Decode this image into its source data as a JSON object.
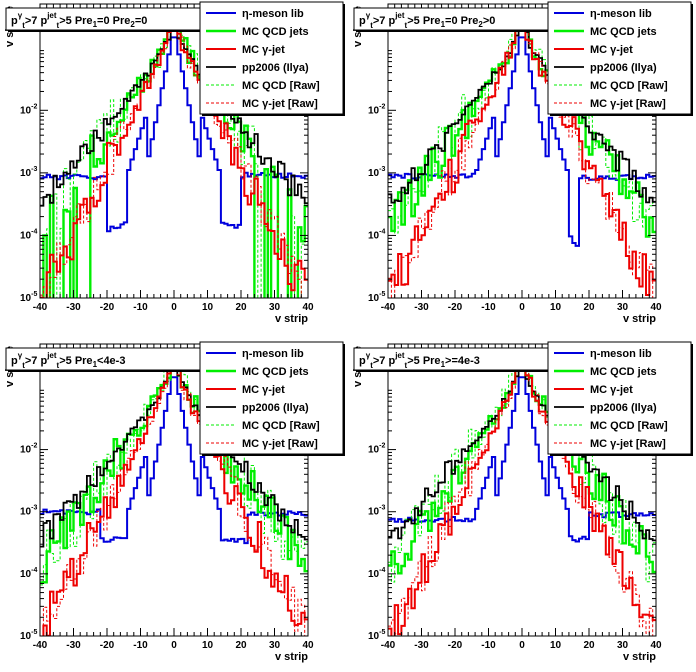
{
  "colors": {
    "eta": "#0000dd",
    "qcd": "#00ee00",
    "gjet": "#ee0000",
    "pp2006": "#000000",
    "qcd_raw": "#00ee00",
    "gjet_raw": "#ee0000"
  },
  "legend": {
    "eta": "η-meson lib",
    "qcd": "MC QCD jets",
    "gjet": "MC γ-jet",
    "pp2006": "pp2006 (Ilya)",
    "qcd_raw": "MC QCD [Raw]",
    "gjet_raw": "MC γ-jet [Raw]"
  },
  "panels": [
    {
      "title": {
        "p": "p",
        "g": "γ",
        "gt": ">7  ",
        "p2": "p",
        "jet": "jet",
        "rest": ">5  Pre",
        "s1": "1",
        "cut": "=0  Pre",
        "s2": "2",
        "cut2": "=0",
        "t": "t"
      },
      "eta_left": 0.00085,
      "eta_right": 0.00092,
      "hasQcdGap": true,
      "tail": 8e-05
    },
    {
      "title": {
        "p": "p",
        "g": "γ",
        "gt": ">7  ",
        "p2": "p",
        "jet": "jet",
        "rest": ">5  Pre",
        "s1": "1",
        "cut": "=0  Pre",
        "s2": "2",
        "cut2": ">0",
        "t": "t"
      },
      "eta_left": 0.0009,
      "eta_right": 0.00085,
      "hasQcdGap": false,
      "tail": 0.00012
    },
    {
      "title": {
        "p": "p",
        "g": "γ",
        "gt": ">7  ",
        "p2": "p",
        "jet": "jet",
        "rest": ">5  Pre",
        "s1": "1",
        "cut": "<4e-3",
        "s2": "",
        "cut2": "",
        "t": "t"
      },
      "eta_left": 0.001,
      "eta_right": 0.00095,
      "hasQcdGap": false,
      "tail": 0.00015
    },
    {
      "title": {
        "p": "p",
        "g": "γ",
        "gt": ">7  ",
        "p2": "p",
        "jet": "jet",
        "rest": ">5  Pre",
        "s1": "1",
        "cut": ">=4e-3",
        "s2": "",
        "cut2": "",
        "t": "t"
      },
      "eta_left": 0.00075,
      "eta_right": 0.0009,
      "hasQcdGap": false,
      "tail": 0.00014
    }
  ],
  "chart_data": {
    "type": "line",
    "xlabel": "v strip",
    "ylabel": "v shape",
    "xlim": [
      -40,
      40
    ],
    "ylim": [
      1e-05,
      0.5
    ],
    "ylog": true,
    "xticks": [
      "-40",
      "-30",
      "-20",
      "-10",
      "0",
      "10",
      "20",
      "30",
      "40"
    ],
    "ytick_base": "10",
    "ytick_exp": [
      "-5",
      "-4",
      "-3",
      "-2"
    ],
    "series": [
      {
        "name": "η-meson lib",
        "peak": 0.2
      },
      {
        "name": "MC QCD jets",
        "peak": 0.35
      },
      {
        "name": "MC γ-jet",
        "peak": 0.4
      },
      {
        "name": "pp2006 (Ilya)",
        "peak": 0.28
      },
      {
        "name": "MC QCD [Raw]",
        "peak": 0.3
      },
      {
        "name": "MC γ-jet [Raw]",
        "peak": 0.42
      }
    ]
  }
}
